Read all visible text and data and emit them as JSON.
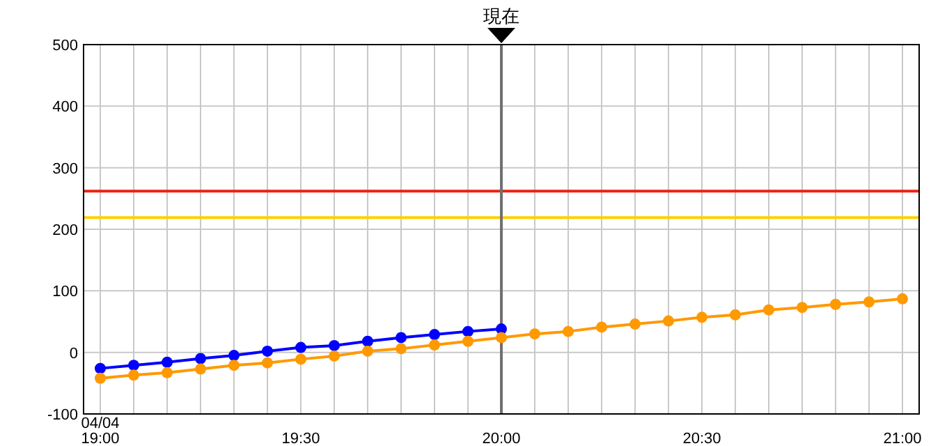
{
  "chart_data": {
    "type": "line",
    "x": [
      19,
      19.0833,
      19.1667,
      19.25,
      19.3333,
      19.4167,
      19.5,
      19.5833,
      19.6667,
      19.75,
      19.8333,
      19.9167,
      20,
      20.0833,
      20.1667,
      20.25,
      20.3333,
      20.4167,
      20.5,
      20.5833,
      20.6667,
      20.75,
      20.8333,
      20.9167,
      21
    ],
    "series": [
      {
        "color": "#0000ff",
        "values": [
          -26,
          -21,
          -16,
          -10,
          -5,
          2,
          8,
          11,
          18,
          24,
          29,
          34,
          38,
          null,
          null,
          null,
          null,
          null,
          null,
          null,
          null,
          null,
          null,
          null,
          null
        ]
      },
      {
        "color": "#ff9900",
        "values": [
          -42,
          -37,
          -33,
          -27,
          -21,
          -17,
          -11,
          -6,
          2,
          6,
          12,
          18,
          24,
          30,
          34,
          41,
          46,
          51,
          57,
          61,
          69,
          73,
          78,
          82,
          87
        ]
      }
    ],
    "xlim": [
      18.9583,
      21.0417
    ],
    "xticks": [
      {
        "value": 19,
        "label": "04/04\n19:00"
      },
      {
        "value": 19.0833,
        "label": null
      },
      {
        "value": 19.1667,
        "label": null
      },
      {
        "value": 19.25,
        "label": null
      },
      {
        "value": 19.3333,
        "label": null
      },
      {
        "value": 19.4167,
        "label": null
      },
      {
        "value": 19.5,
        "label": "19:30"
      },
      {
        "value": 19.5833,
        "label": null
      },
      {
        "value": 19.6667,
        "label": null
      },
      {
        "value": 19.75,
        "label": null
      },
      {
        "value": 19.8333,
        "label": null
      },
      {
        "value": 19.9167,
        "label": null
      },
      {
        "value": 20,
        "label": "20:00"
      },
      {
        "value": 20.0833,
        "label": null
      },
      {
        "value": 20.1667,
        "label": null
      },
      {
        "value": 20.25,
        "label": null
      },
      {
        "value": 20.3333,
        "label": null
      },
      {
        "value": 20.4167,
        "label": null
      },
      {
        "value": 20.5,
        "label": "20:30"
      },
      {
        "value": 20.5833,
        "label": null
      },
      {
        "value": 20.6667,
        "label": null
      },
      {
        "value": 20.75,
        "label": null
      },
      {
        "value": 20.8333,
        "label": null
      },
      {
        "value": 20.9167,
        "label": null
      },
      {
        "value": 21,
        "label": "21:00"
      }
    ],
    "ylim": [
      -100,
      500
    ],
    "yticks": [
      -100,
      0,
      100,
      200,
      300,
      400,
      500
    ],
    "grid": true,
    "marker": "circle",
    "line_style": "solid",
    "ref_lines": [
      {
        "axis": "y",
        "value": 262,
        "color": "#ee2211"
      },
      {
        "axis": "y",
        "value": 219,
        "color": "#ffd000"
      },
      {
        "axis": "x",
        "value": 20,
        "label": "現在",
        "color": "#707070"
      }
    ]
  }
}
